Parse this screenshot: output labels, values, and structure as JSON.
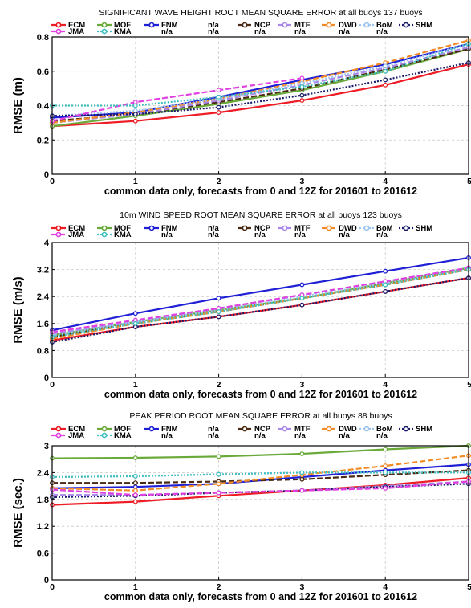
{
  "chart_data": [
    {
      "type": "line",
      "title": "SIGNIFICANT WAVE HEIGHT ROOT MEAN SQUARE ERROR at all buoys 137 buoys",
      "xlabel": "common data only, forecasts from 0 and 12Z for 201601 to 201612",
      "ylabel": "RMSE (m)",
      "x": [
        0,
        1,
        2,
        3,
        4,
        5
      ],
      "xlim": [
        0,
        5
      ],
      "ylim": [
        0,
        0.8
      ],
      "yticks": [
        0,
        0.2,
        0.4,
        0.6,
        0.8
      ],
      "ytick_labels": [
        "0",
        "0.2",
        "0.4",
        "0.6",
        "0.8"
      ],
      "xticks": [
        0,
        1,
        2,
        3,
        4,
        5
      ],
      "grid": true,
      "series": [
        {
          "name": "ECM",
          "values": [
            0.28,
            0.31,
            0.36,
            0.43,
            0.52,
            0.64
          ]
        },
        {
          "name": "MOF",
          "values": [
            0.28,
            0.34,
            0.41,
            0.49,
            0.6,
            0.73
          ]
        },
        {
          "name": "FNM",
          "values": [
            0.33,
            0.36,
            0.45,
            0.55,
            0.64,
            0.76
          ]
        },
        {
          "name": "NCP",
          "values": [
            0.31,
            0.35,
            0.42,
            0.5,
            0.61,
            0.73
          ]
        },
        {
          "name": "MTF",
          "values": [
            0.3,
            0.35,
            0.43,
            0.52,
            0.62,
            0.74
          ]
        },
        {
          "name": "DWD",
          "values": [
            0.3,
            0.36,
            0.44,
            0.54,
            0.65,
            0.78
          ]
        },
        {
          "name": "BoM",
          "values": [
            0.34,
            0.37,
            0.44,
            0.53,
            0.63,
            0.76
          ]
        },
        {
          "name": "SHM",
          "values": [
            0.34,
            0.35,
            0.39,
            0.46,
            0.55,
            0.65
          ]
        },
        {
          "name": "JMA",
          "values": [
            0.31,
            0.42,
            0.49,
            0.56,
            null,
            null
          ]
        },
        {
          "name": "KMA",
          "values": [
            0.4,
            0.4,
            0.45,
            0.51,
            0.6,
            0.76
          ]
        }
      ]
    },
    {
      "type": "line",
      "title": "10m WIND SPEED ROOT MEAN SQUARE ERROR at all buoys 123 buoys",
      "xlabel": "common data only, forecasts from 0 and 12Z for 201601 to 201612",
      "ylabel": "RMSE (m/s)",
      "x": [
        0,
        1,
        2,
        3,
        4,
        5
      ],
      "xlim": [
        0,
        5
      ],
      "ylim": [
        0,
        4
      ],
      "yticks": [
        0,
        0.8,
        1.6,
        2.4,
        3.2,
        4
      ],
      "ytick_labels": [
        "0",
        "0.8",
        "1.6",
        "2.4",
        "3.2",
        "4"
      ],
      "xticks": [
        0,
        1,
        2,
        3,
        4,
        5
      ],
      "grid": true,
      "series": [
        {
          "name": "ECM",
          "values": [
            1.1,
            1.5,
            1.8,
            2.15,
            2.55,
            2.95
          ]
        },
        {
          "name": "MOF",
          "values": [
            1.25,
            1.65,
            2.0,
            2.35,
            2.8,
            3.25
          ]
        },
        {
          "name": "FNM",
          "values": [
            1.4,
            1.9,
            2.35,
            2.75,
            3.15,
            3.55
          ]
        },
        {
          "name": "NCP",
          "values": [
            1.2,
            1.6,
            1.95,
            2.35,
            2.75,
            3.2
          ]
        },
        {
          "name": "MTF",
          "values": [
            1.3,
            1.65,
            2.05,
            2.45,
            2.85,
            3.25
          ]
        },
        {
          "name": "DWD",
          "values": [
            1.15,
            1.6,
            1.95,
            2.35,
            2.75,
            3.2
          ]
        },
        {
          "name": "BoM",
          "values": [
            1.25,
            1.65,
            2.0,
            2.4,
            2.8,
            3.25
          ]
        },
        {
          "name": "SHM",
          "values": [
            1.05,
            1.5,
            1.8,
            2.15,
            2.55,
            2.95
          ]
        },
        {
          "name": "JMA",
          "values": [
            1.35,
            1.7,
            2.05,
            2.45,
            2.85,
            3.25
          ]
        },
        {
          "name": "KMA",
          "values": [
            1.2,
            1.6,
            1.95,
            2.35,
            2.75,
            3.2
          ]
        }
      ]
    },
    {
      "type": "line",
      "title": "PEAK PERIOD ROOT MEAN SQUARE ERROR at all buoys 88 buoys",
      "xlabel": "common data only, forecasts from 0 and 12Z for 201601 to 201612",
      "ylabel": "RMSE (sec.)",
      "x": [
        0,
        1,
        2,
        3,
        4,
        5
      ],
      "xlim": [
        0,
        5
      ],
      "ylim": [
        0,
        3
      ],
      "yticks": [
        0,
        0.6,
        1.2,
        1.8,
        2.4,
        3
      ],
      "ytick_labels": [
        "0",
        "0.6",
        "1.2",
        "1.8",
        "2.4",
        "3"
      ],
      "xticks": [
        0,
        1,
        2,
        3,
        4,
        5
      ],
      "grid": true,
      "series": [
        {
          "name": "ECM",
          "values": [
            1.68,
            1.75,
            1.88,
            2.0,
            2.12,
            2.28
          ]
        },
        {
          "name": "MOF",
          "values": [
            2.72,
            2.73,
            2.76,
            2.82,
            2.92,
            3.0
          ]
        },
        {
          "name": "FNM",
          "values": [
            2.05,
            2.08,
            2.15,
            2.3,
            2.45,
            2.58
          ]
        },
        {
          "name": "NCP",
          "values": [
            2.17,
            2.17,
            2.2,
            2.25,
            2.35,
            2.45
          ]
        },
        {
          "name": "MTF",
          "values": [
            1.9,
            1.9,
            1.95,
            2.0,
            2.1,
            2.2
          ]
        },
        {
          "name": "DWD",
          "values": [
            2.05,
            2.0,
            2.15,
            2.35,
            2.55,
            2.78
          ]
        },
        {
          "name": "BoM",
          "values": [
            2.3,
            2.32,
            2.36,
            2.4,
            2.4,
            2.4
          ]
        },
        {
          "name": "SHM",
          "values": [
            1.85,
            1.88,
            1.95,
            2.0,
            2.08,
            2.15
          ]
        },
        {
          "name": "JMA",
          "values": [
            2.02,
            1.9,
            1.95,
            2.0,
            2.05,
            2.2
          ]
        },
        {
          "name": "KMA",
          "values": [
            2.3,
            2.32,
            2.36,
            2.4,
            2.4,
            2.4
          ]
        }
      ]
    }
  ],
  "legend": {
    "row1": [
      {
        "label": "ECM",
        "color": "#ee1c25",
        "dash": "",
        "marker": "circle"
      },
      {
        "label": "MOF",
        "color": "#6aaa3a",
        "dash": "",
        "marker": "circle"
      },
      {
        "label": "FNM",
        "color": "#1f1fd6",
        "dash": "",
        "marker": "circle"
      },
      {
        "label": "n/a",
        "color": "",
        "dash": "",
        "marker": "none"
      },
      {
        "label": "NCP",
        "color": "#4a2a12",
        "dash": "7,3",
        "marker": "circle"
      },
      {
        "label": "MTF",
        "color": "#a888e8",
        "dash": "7,3",
        "marker": "circle"
      },
      {
        "label": "DWD",
        "color": "#f28c28",
        "dash": "7,3",
        "marker": "circle"
      },
      {
        "label": "BoM",
        "color": "#9cc4ee",
        "dash": "2,2",
        "marker": "circle"
      },
      {
        "label": "SHM",
        "color": "#1a1a6a",
        "dash": "2,2",
        "marker": "circle"
      }
    ],
    "row2": [
      {
        "label": "JMA",
        "color": "#e040e0",
        "dash": "7,3",
        "marker": "circle"
      },
      {
        "label": "KMA",
        "color": "#40c0c0",
        "dash": "2,2",
        "marker": "circle"
      },
      {
        "label": "n/a",
        "color": "",
        "dash": "",
        "marker": "none"
      },
      {
        "label": "n/a",
        "color": "",
        "dash": "",
        "marker": "none"
      },
      {
        "label": "n/a",
        "color": "",
        "dash": "",
        "marker": "none"
      },
      {
        "label": "n/a",
        "color": "",
        "dash": "",
        "marker": "none"
      },
      {
        "label": "n/a",
        "color": "",
        "dash": "",
        "marker": "none"
      },
      {
        "label": "n/a",
        "color": "",
        "dash": "",
        "marker": "none"
      }
    ]
  },
  "series_style": {
    "ECM": {
      "color": "#ee1c25",
      "dash": ""
    },
    "MOF": {
      "color": "#6aaa3a",
      "dash": ""
    },
    "FNM": {
      "color": "#1f1fd6",
      "dash": ""
    },
    "NCP": {
      "color": "#4a2a12",
      "dash": "7,3"
    },
    "MTF": {
      "color": "#a888e8",
      "dash": "7,3"
    },
    "DWD": {
      "color": "#f28c28",
      "dash": "7,3"
    },
    "BoM": {
      "color": "#9cc4ee",
      "dash": "2,2"
    },
    "SHM": {
      "color": "#1a1a6a",
      "dash": "2,2"
    },
    "JMA": {
      "color": "#e040e0",
      "dash": "7,3"
    },
    "KMA": {
      "color": "#40c0c0",
      "dash": "2,2"
    }
  }
}
